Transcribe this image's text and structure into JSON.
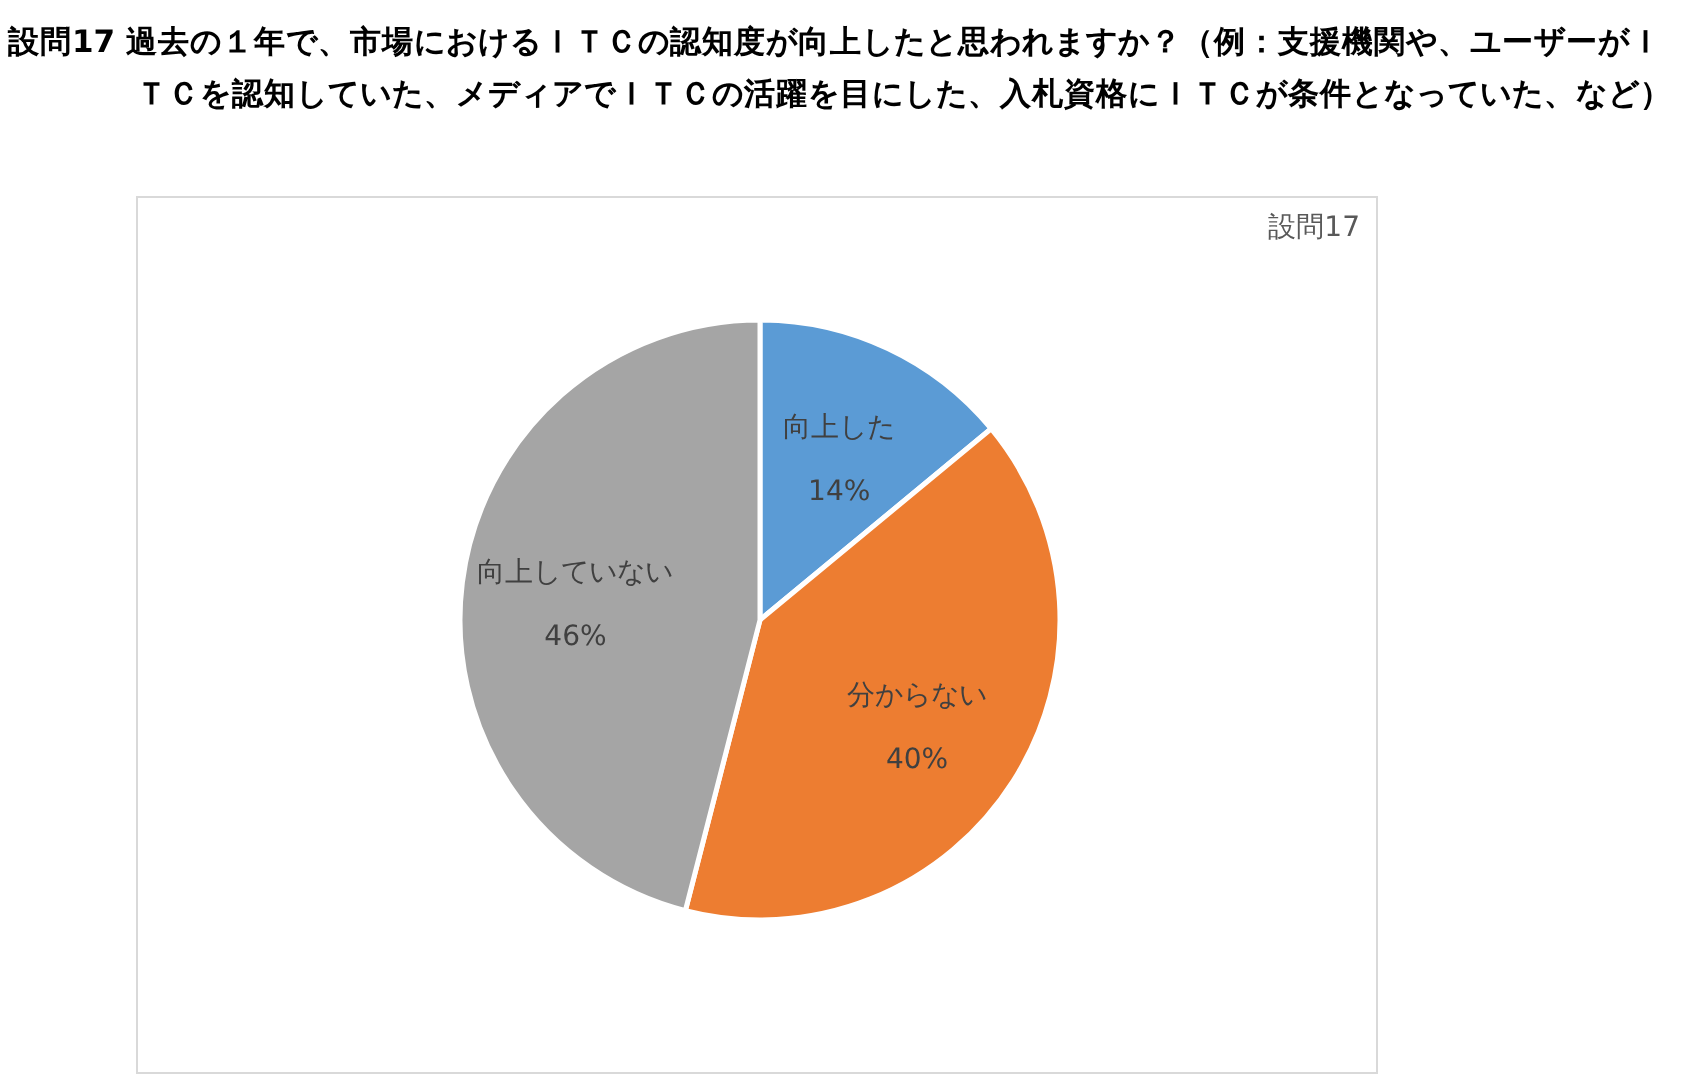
{
  "chart_data": {
    "type": "pie",
    "title": "設問17 過去の１年で、市場におけるＩＴＣの認知度が向上したと思われますか？（例：支援機関や、ユーザーがＩＴＣを認知していた、メディアでＩＴＣの活躍を目にした、入札資格にＩＴＣが条件となっていた、など）",
    "subtitle": "設問17",
    "categories": [
      "向上した",
      "分からない",
      "向上していない"
    ],
    "values": [
      14,
      40,
      46
    ],
    "colors": [
      "#5b9bd5",
      "#ed7d31",
      "#a5a5a5"
    ],
    "value_labels": [
      "14%",
      "40%",
      "46%"
    ]
  }
}
